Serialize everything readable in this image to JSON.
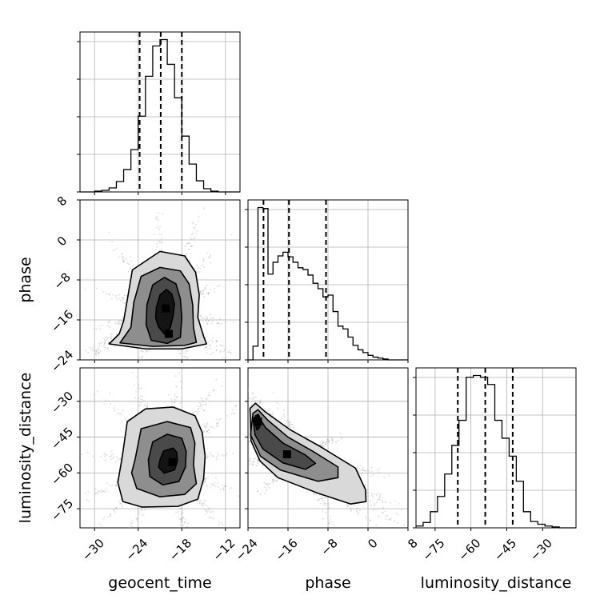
{
  "chart_data": {
    "type": "corner",
    "parameters": [
      "geocent_time",
      "phase",
      "luminosity_distance"
    ],
    "axis_labels": {
      "x": [
        "geocent_time",
        "phase",
        "luminosity_distance"
      ],
      "y": [
        "phase",
        "luminosity_distance"
      ]
    },
    "grid": true,
    "ranges": {
      "geocent_time": [
        -32,
        -10
      ],
      "phase": [
        -24,
        8
      ],
      "luminosity_distance": [
        -83,
        -16
      ]
    },
    "ticks": {
      "geocent_time": {
        "values": [
          -30,
          -24,
          -18,
          -12
        ],
        "labels": [
          "−30",
          "−24",
          "−18",
          "−12"
        ]
      },
      "phase_x": {
        "values": [
          -24,
          -16,
          -8,
          0,
          8
        ],
        "labels": [
          "−24",
          "−16",
          "−8",
          "0",
          "8"
        ]
      },
      "phase_y": {
        "values": [
          -24,
          -16,
          -8,
          0,
          8
        ],
        "labels": [
          "−24",
          "−16",
          "−8",
          "0",
          "8"
        ]
      },
      "luminosity_distance_x": {
        "values": [
          -75,
          -60,
          -45,
          -30
        ],
        "labels": [
          "−75",
          "−60",
          "−45",
          "−30"
        ]
      },
      "luminosity_distance_y": {
        "values": [
          -75,
          -60,
          -45,
          -30
        ],
        "labels": [
          "−75",
          "−60",
          "−45",
          "−30"
        ]
      }
    },
    "marginals": {
      "geocent_time": {
        "bin_edges": [
          -32,
          -31,
          -30,
          -29,
          -28,
          -27,
          -26,
          -25,
          -24,
          -23,
          -22,
          -21,
          -20,
          -19,
          -18,
          -17,
          -16,
          -15,
          -14,
          -13,
          -12,
          -11,
          -10
        ],
        "counts": [
          0,
          0,
          1,
          2,
          5,
          13,
          28,
          53,
          95,
          145,
          183,
          191,
          160,
          118,
          70,
          35,
          14,
          4,
          1,
          0,
          0,
          0
        ],
        "quantiles": [
          -23.8,
          -20.9,
          -18.0
        ]
      },
      "phase": {
        "bin_edges": [
          -24,
          -23,
          -22,
          -21,
          -20,
          -19,
          -18,
          -17,
          -16,
          -15,
          -14,
          -13,
          -12,
          -11,
          -10,
          -9,
          -8,
          -7,
          -6,
          -5,
          -4,
          -3,
          -2,
          -1,
          0,
          1,
          2,
          3,
          4,
          5,
          6,
          7,
          8
        ],
        "counts": [
          0,
          15,
          167,
          166,
          94,
          107,
          114,
          118,
          113,
          107,
          101,
          99,
          93,
          84,
          78,
          69,
          71,
          53,
          37,
          34,
          25,
          16,
          11,
          8,
          5,
          3,
          2,
          1,
          0,
          0,
          0,
          0
        ],
        "quantiles": [
          -20.9,
          -15.8,
          -8.4
        ]
      },
      "luminosity_distance": {
        "bin_edges": [
          -83,
          -80,
          -77,
          -74,
          -71,
          -68,
          -65,
          -62,
          -59,
          -56,
          -53,
          -50,
          -47,
          -44,
          -41,
          -38,
          -35,
          -32,
          -29,
          -26,
          -23,
          -20,
          -17,
          -16
        ],
        "counts": [
          2,
          6,
          18,
          35,
          60,
          92,
          120,
          168,
          170,
          168,
          160,
          120,
          100,
          80,
          52,
          18,
          7,
          4,
          2,
          1,
          0,
          0,
          0
        ],
        "quantiles": [
          -65.5,
          -54.0,
          -42.5
        ]
      }
    },
    "joint": [
      {
        "x": "geocent_time",
        "y": "phase",
        "density_peaks": [
          {
            "x": -20.2,
            "y": -13.7
          },
          {
            "x": -19.8,
            "y": -18.8
          }
        ],
        "contours": [
          [
            [
              -21.5,
              -13.5
            ],
            [
              -21.0,
              -11.0
            ],
            [
              -20.1,
              -9.9
            ],
            [
              -19.4,
              -10.8
            ],
            [
              -19.0,
              -12.8
            ],
            [
              -19.2,
              -15.2
            ],
            [
              -19.6,
              -17.6
            ],
            [
              -20.4,
              -18.8
            ],
            [
              -21.2,
              -17.4
            ],
            [
              -21.6,
              -15.6
            ]
          ],
          [
            [
              -22.8,
              -13.0
            ],
            [
              -22.0,
              -9.0
            ],
            [
              -20.4,
              -7.5
            ],
            [
              -18.8,
              -8.8
            ],
            [
              -18.2,
              -11.8
            ],
            [
              -18.0,
              -15.5
            ],
            [
              -18.2,
              -19.5
            ],
            [
              -20.0,
              -20.7
            ],
            [
              -22.2,
              -20.1
            ],
            [
              -22.9,
              -17.0
            ]
          ],
          [
            [
              -24.6,
              -12.5
            ],
            [
              -23.6,
              -7.3
            ],
            [
              -21.0,
              -5.5
            ],
            [
              -18.2,
              -6.2
            ],
            [
              -17.0,
              -8.8
            ],
            [
              -16.5,
              -13.0
            ],
            [
              -16.4,
              -17.5
            ],
            [
              -16.0,
              -20.5
            ],
            [
              -17.6,
              -21.1
            ],
            [
              -22.0,
              -21.3
            ],
            [
              -26.5,
              -20.6
            ],
            [
              -25.0,
              -17.5
            ]
          ],
          [
            [
              -25.5,
              -12.0
            ],
            [
              -24.8,
              -6.0
            ],
            [
              -21.0,
              -2.3
            ],
            [
              -17.6,
              -3.2
            ],
            [
              -16.1,
              -6.5
            ],
            [
              -15.6,
              -11.0
            ],
            [
              -15.8,
              -15.5
            ],
            [
              -15.0,
              -19.3
            ],
            [
              -14.6,
              -20.8
            ],
            [
              -18.0,
              -21.8
            ],
            [
              -23.0,
              -21.8
            ],
            [
              -28.0,
              -20.8
            ],
            [
              -26.6,
              -18.8
            ],
            [
              -26.0,
              -16.2
            ]
          ]
        ]
      },
      {
        "x": "geocent_time",
        "y": "luminosity_distance",
        "density_peaks": [
          {
            "x": -19.3,
            "y": -55.5
          }
        ],
        "contours": [
          [
            [
              -21.0,
              -54.5
            ],
            [
              -20.5,
              -50.8
            ],
            [
              -19.2,
              -49.6
            ],
            [
              -18.7,
              -51.3
            ],
            [
              -18.6,
              -55.0
            ],
            [
              -19.0,
              -58.7
            ],
            [
              -20.4,
              -60.1
            ],
            [
              -21.2,
              -57.6
            ]
          ],
          [
            [
              -22.6,
              -54.5
            ],
            [
              -22.0,
              -47.0
            ],
            [
              -20.0,
              -43.8
            ],
            [
              -18.0,
              -45.5
            ],
            [
              -17.4,
              -51.0
            ],
            [
              -17.5,
              -57.5
            ],
            [
              -18.4,
              -63.6
            ],
            [
              -20.6,
              -65.0
            ],
            [
              -22.4,
              -61.5
            ]
          ],
          [
            [
              -24.4,
              -54.0
            ],
            [
              -23.6,
              -41.5
            ],
            [
              -20.0,
              -38.5
            ],
            [
              -16.8,
              -41.0
            ],
            [
              -16.2,
              -47.5
            ],
            [
              -16.4,
              -56.5
            ],
            [
              -16.0,
              -64.5
            ],
            [
              -17.6,
              -69.0
            ],
            [
              -21.0,
              -70.0
            ],
            [
              -24.2,
              -66.5
            ],
            [
              -24.9,
              -60.0
            ]
          ],
          [
            [
              -26.2,
              -53.5
            ],
            [
              -25.5,
              -38.5
            ],
            [
              -23.0,
              -33.2
            ],
            [
              -19.2,
              -32.4
            ],
            [
              -16.2,
              -36.0
            ],
            [
              -15.2,
              -43.0
            ],
            [
              -14.8,
              -53.0
            ],
            [
              -15.0,
              -62.5
            ],
            [
              -15.8,
              -71.0
            ],
            [
              -18.5,
              -74.0
            ],
            [
              -23.5,
              -74.3
            ],
            [
              -26.1,
              -72.0
            ],
            [
              -26.8,
              -64.0
            ]
          ]
        ]
      },
      {
        "x": "phase",
        "y": "luminosity_distance",
        "density_peaks": [
          {
            "x": -22.0,
            "y": -38.5
          },
          {
            "x": -16.2,
            "y": -52.2
          }
        ],
        "contours": [
          [
            [
              -22.5,
              -36.0
            ],
            [
              -21.9,
              -35.5
            ],
            [
              -21.5,
              -37.5
            ],
            [
              -21.7,
              -41.0
            ],
            [
              -22.2,
              -42.0
            ],
            [
              -22.6,
              -39.0
            ]
          ],
          [
            [
              -23.0,
              -37.0
            ],
            [
              -22.0,
              -36.0
            ],
            [
              -20.5,
              -41.0
            ],
            [
              -17.0,
              -47.5
            ],
            [
              -12.5,
              -52.5
            ],
            [
              -10.5,
              -56.0
            ],
            [
              -12.5,
              -58.5
            ],
            [
              -17.0,
              -55.8
            ],
            [
              -21.0,
              -50.0
            ],
            [
              -22.6,
              -44.0
            ]
          ],
          [
            [
              -23.0,
              -35.0
            ],
            [
              -22.0,
              -33.5
            ],
            [
              -20.0,
              -38.0
            ],
            [
              -16.0,
              -45.0
            ],
            [
              -11.0,
              -51.0
            ],
            [
              -6.0,
              -57.5
            ],
            [
              -6.0,
              -62.0
            ],
            [
              -10.0,
              -63.5
            ],
            [
              -17.5,
              -58.8
            ],
            [
              -21.5,
              -53.0
            ],
            [
              -23.5,
              -44.0
            ]
          ],
          [
            [
              -23.6,
              -33.0
            ],
            [
              -22.5,
              -30.8
            ],
            [
              -20.5,
              -34.5
            ],
            [
              -15.5,
              -42.0
            ],
            [
              -9.5,
              -49.0
            ],
            [
              -2.5,
              -58.0
            ],
            [
              -0.5,
              -67.0
            ],
            [
              -0.4,
              -72.0
            ],
            [
              -3.5,
              -73.0
            ],
            [
              -10.0,
              -68.5
            ],
            [
              -18.0,
              -62.0
            ],
            [
              -21.6,
              -55.0
            ],
            [
              -23.4,
              -46.5
            ]
          ]
        ]
      }
    ]
  }
}
